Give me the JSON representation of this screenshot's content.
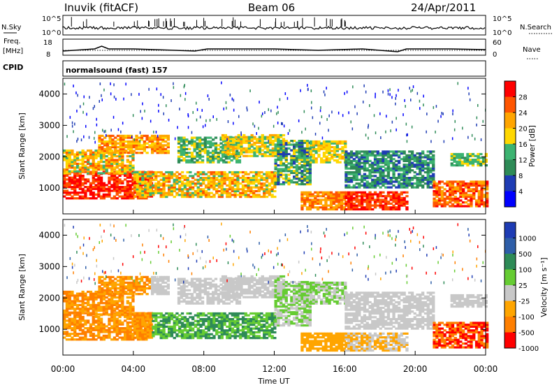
{
  "header": {
    "station": "Inuvik (fitACF)",
    "beam": "Beam 06",
    "date": "24/Apr/2011"
  },
  "sky_panel": {
    "left_label": "N.Sky",
    "right_label": "N.Search",
    "left_ticks": [
      "10^5",
      "10^0"
    ],
    "right_ticks": [
      "10^5",
      "10^0"
    ]
  },
  "freq_panel": {
    "left_label_line1": "Freq.",
    "left_label_line2": "[MHz]",
    "right_label": "Nave",
    "left_ticks": [
      "18",
      "8"
    ],
    "right_ticks": [
      "60",
      "0"
    ]
  },
  "cpid_panel": {
    "label": "CPID",
    "mode": "normalsound (fast) 157"
  },
  "colors": {
    "power_scale": [
      "#0000ff",
      "#1e3cb4",
      "#2e8b57",
      "#3cb371",
      "#ffd700",
      "#ffa500",
      "#ff5500",
      "#ff0000"
    ],
    "velocity_scale": [
      "#1e3cb4",
      "#2e5ea8",
      "#2e8b57",
      "#66cc33",
      "#c8c8c8",
      "#ffa500",
      "#ff7f00",
      "#ff0000"
    ]
  },
  "chart_data": [
    {
      "type": "heatmap",
      "name": "power",
      "ylabel": "Slant Range [km]",
      "xlabel": "",
      "ylim": [
        180,
        4500
      ],
      "xlim": [
        "00:00",
        "24:00"
      ],
      "yticks": [
        "1000",
        "2000",
        "3000",
        "4000"
      ],
      "colorbar_label": "Power [dB]",
      "colorbar_ticks": [
        "4",
        "8",
        "12",
        "16",
        "20",
        "24",
        "28"
      ]
    },
    {
      "type": "heatmap",
      "name": "velocity",
      "ylabel": "Slant Range [km]",
      "xlabel": "Time UT",
      "ylim": [
        180,
        4500
      ],
      "xlim": [
        "00:00",
        "24:00"
      ],
      "xticks": [
        "00:00",
        "04:00",
        "08:00",
        "12:00",
        "16:00",
        "20:00",
        "00:00"
      ],
      "yticks": [
        "1000",
        "2000",
        "3000",
        "4000"
      ],
      "colorbar_label": "Velocity [m s⁻¹]",
      "colorbar_ticks": [
        "1000",
        "500",
        "100",
        "25",
        "-25",
        "-100",
        "-500",
        "-1000"
      ]
    }
  ]
}
